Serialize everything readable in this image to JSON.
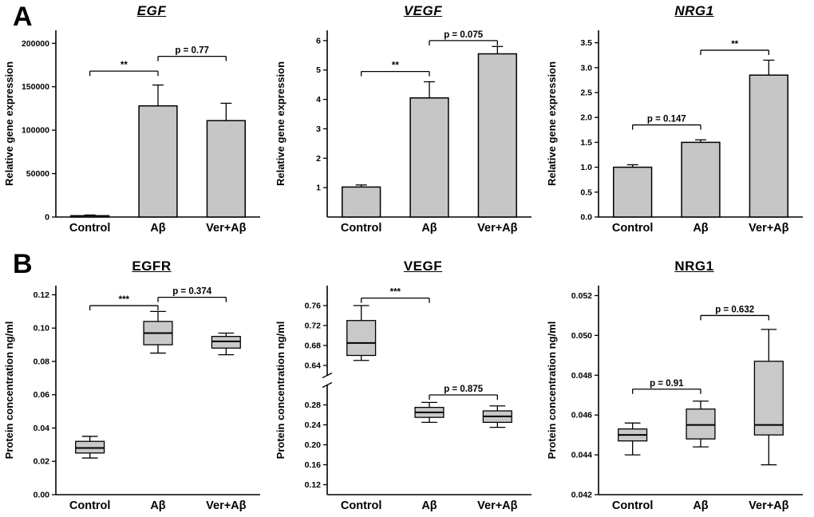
{
  "panels": {
    "a_label": "A",
    "b_label": "B"
  },
  "colors": {
    "bar_fill": "#c6c6c6",
    "box_fill": "#c9c9c9",
    "stroke": "#000000",
    "background": "#ffffff"
  },
  "chart_data": [
    {
      "id": "egf-gene",
      "panel": "A",
      "type": "bar",
      "title": "EGF",
      "ylabel": "Relative gene expression",
      "categories": [
        "Control",
        "Aβ",
        "Ver+Aβ"
      ],
      "values": [
        1500,
        128000,
        111000
      ],
      "errors": [
        800,
        24000,
        20000
      ],
      "ylim": [
        0,
        215000
      ],
      "yticks": [
        0,
        50000,
        100000,
        150000,
        200000
      ],
      "ytick_labels": [
        "0",
        "50000",
        "100000",
        "150000",
        "200000"
      ],
      "annotations": [
        {
          "text": "**",
          "x1": 0,
          "x2": 1,
          "y": 168000
        },
        {
          "text": "p = 0.77",
          "x1": 1,
          "x2": 2,
          "y": 185000
        }
      ]
    },
    {
      "id": "vegf-gene",
      "panel": "A",
      "type": "bar",
      "title": "VEGF",
      "ylabel": "Relative gene expression",
      "categories": [
        "Control",
        "Aβ",
        "Ver+Aβ"
      ],
      "values": [
        1.02,
        4.05,
        5.55
      ],
      "errors": [
        0.07,
        0.55,
        0.25
      ],
      "ylim": [
        0,
        6.35
      ],
      "yticks": [
        1,
        2,
        3,
        4,
        5,
        6
      ],
      "ytick_labels": [
        "1",
        "2",
        "3",
        "4",
        "5",
        "6"
      ],
      "annotations": [
        {
          "text": "**",
          "x1": 0,
          "x2": 1,
          "y": 4.95
        },
        {
          "text": "p = 0.075",
          "x1": 1,
          "x2": 2,
          "y": 6.0
        }
      ]
    },
    {
      "id": "nrg1-gene",
      "panel": "A",
      "type": "bar",
      "title": "NRG1",
      "ylabel": "Relative gene expression",
      "categories": [
        "Control",
        "Aβ",
        "Ver+Aβ"
      ],
      "values": [
        1.0,
        1.5,
        2.85
      ],
      "errors": [
        0.05,
        0.05,
        0.3
      ],
      "ylim": [
        0,
        3.75
      ],
      "yticks": [
        0.0,
        0.5,
        1.0,
        1.5,
        2.0,
        2.5,
        3.0,
        3.5
      ],
      "ytick_labels": [
        "0.0",
        "0.5",
        "1.0",
        "1.5",
        "2.0",
        "2.5",
        "3.0",
        "3.5"
      ],
      "annotations": [
        {
          "text": "p = 0.147",
          "x1": 0,
          "x2": 1,
          "y": 1.85
        },
        {
          "text": "**",
          "x1": 1,
          "x2": 2,
          "y": 3.35
        }
      ]
    },
    {
      "id": "egfr-protein",
      "panel": "B",
      "type": "box",
      "title": "EGFR",
      "ylabel": "Protein concentration ng/ml",
      "categories": [
        "Control",
        "Aβ",
        "Ver+Aβ"
      ],
      "boxes": [
        {
          "whisker_low": 0.022,
          "q1": 0.025,
          "median": 0.028,
          "q3": 0.032,
          "whisker_high": 0.035
        },
        {
          "whisker_low": 0.085,
          "q1": 0.09,
          "median": 0.097,
          "q3": 0.104,
          "whisker_high": 0.11
        },
        {
          "whisker_low": 0.084,
          "q1": 0.088,
          "median": 0.092,
          "q3": 0.095,
          "whisker_high": 0.097
        }
      ],
      "ylim": [
        0,
        0.1255
      ],
      "yticks": [
        0.0,
        0.02,
        0.04,
        0.06,
        0.08,
        0.1,
        0.12
      ],
      "ytick_labels": [
        "0.00",
        "0.02",
        "0.04",
        "0.06",
        "0.08",
        "0.10",
        "0.12"
      ],
      "annotations": [
        {
          "text": "***",
          "x1": 0,
          "x2": 1,
          "y": 0.1135
        },
        {
          "text": "p = 0.374",
          "x1": 1,
          "x2": 2,
          "y": 0.1185
        }
      ]
    },
    {
      "id": "vegf-protein",
      "panel": "B",
      "type": "box",
      "title": "VEGF",
      "ylabel": "Protein concentration ng/ml",
      "categories": [
        "Control",
        "Aβ",
        "Ver+Aβ"
      ],
      "boxes": [
        {
          "whisker_low": 0.65,
          "q1": 0.66,
          "median": 0.685,
          "q3": 0.73,
          "whisker_high": 0.76
        },
        {
          "whisker_low": 0.245,
          "q1": 0.255,
          "median": 0.265,
          "q3": 0.275,
          "whisker_high": 0.285
        },
        {
          "whisker_low": 0.235,
          "q1": 0.245,
          "median": 0.257,
          "q3": 0.268,
          "whisker_high": 0.278
        }
      ],
      "axis_break": true,
      "segments": [
        {
          "range": [
            0.1,
            0.32
          ],
          "ticks": [
            0.12,
            0.16,
            0.2,
            0.24,
            0.28
          ],
          "tick_labels": [
            "0.12",
            "0.16",
            "0.20",
            "0.24",
            "0.28"
          ]
        },
        {
          "range": [
            0.62,
            0.8
          ],
          "ticks": [
            0.64,
            0.68,
            0.72,
            0.76
          ],
          "tick_labels": [
            "0.64",
            "0.68",
            "0.72",
            "0.76"
          ]
        }
      ],
      "annotations": [
        {
          "text": "***",
          "x1": 0,
          "x2": 1,
          "y": 0.775
        },
        {
          "text": "p = 0.875",
          "x1": 1,
          "x2": 2,
          "y": 0.3
        }
      ]
    },
    {
      "id": "nrg1-protein",
      "panel": "B",
      "type": "box",
      "title": "NRG1",
      "ylabel": "Protein concentration ng/ml",
      "categories": [
        "Control",
        "Aβ",
        "Ver+Aβ"
      ],
      "boxes": [
        {
          "whisker_low": 0.044,
          "q1": 0.0447,
          "median": 0.045,
          "q3": 0.0453,
          "whisker_high": 0.0456
        },
        {
          "whisker_low": 0.0444,
          "q1": 0.0448,
          "median": 0.0455,
          "q3": 0.0463,
          "whisker_high": 0.0467
        },
        {
          "whisker_low": 0.0435,
          "q1": 0.045,
          "median": 0.0455,
          "q3": 0.0487,
          "whisker_high": 0.0503
        }
      ],
      "ylim": [
        0.042,
        0.0525
      ],
      "yticks": [
        0.042,
        0.044,
        0.046,
        0.048,
        0.05,
        0.052
      ],
      "ytick_labels": [
        "0.042",
        "0.044",
        "0.046",
        "0.048",
        "0.050",
        "0.052"
      ],
      "annotations": [
        {
          "text": "p = 0.91",
          "x1": 0,
          "x2": 1,
          "y": 0.0473
        },
        {
          "text": "p = 0.632",
          "x1": 1,
          "x2": 2,
          "y": 0.051
        }
      ]
    }
  ]
}
